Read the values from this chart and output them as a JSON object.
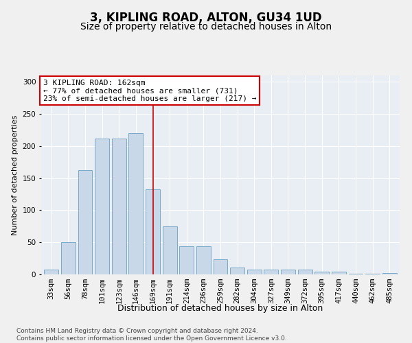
{
  "title": "3, KIPLING ROAD, ALTON, GU34 1UD",
  "subtitle": "Size of property relative to detached houses in Alton",
  "xlabel": "Distribution of detached houses by size in Alton",
  "ylabel": "Number of detached properties",
  "categories": [
    "33sqm",
    "56sqm",
    "78sqm",
    "101sqm",
    "123sqm",
    "146sqm",
    "169sqm",
    "191sqm",
    "214sqm",
    "236sqm",
    "259sqm",
    "282sqm",
    "304sqm",
    "327sqm",
    "349sqm",
    "372sqm",
    "395sqm",
    "417sqm",
    "440sqm",
    "462sqm",
    "485sqm"
  ],
  "values": [
    7,
    50,
    163,
    212,
    212,
    220,
    133,
    75,
    44,
    44,
    24,
    11,
    8,
    8,
    7,
    7,
    4,
    4,
    1,
    1,
    2
  ],
  "bar_color": "#c8d8e8",
  "bar_edge_color": "#7aaac8",
  "vline_index": 6.0,
  "annotation_text": "3 KIPLING ROAD: 162sqm\n← 77% of detached houses are smaller (731)\n23% of semi-detached houses are larger (217) →",
  "annotation_box_color": "#ffffff",
  "annotation_box_edge_color": "#cc0000",
  "vline_color": "#cc0000",
  "ylim": [
    0,
    310
  ],
  "yticks": [
    0,
    50,
    100,
    150,
    200,
    250,
    300
  ],
  "background_color": "#e8eef4",
  "grid_color": "#ffffff",
  "footer": "Contains HM Land Registry data © Crown copyright and database right 2024.\nContains public sector information licensed under the Open Government Licence v3.0.",
  "title_fontsize": 12,
  "subtitle_fontsize": 10,
  "xlabel_fontsize": 9,
  "ylabel_fontsize": 8,
  "tick_fontsize": 7.5,
  "annotation_fontsize": 8,
  "footer_fontsize": 6.5
}
